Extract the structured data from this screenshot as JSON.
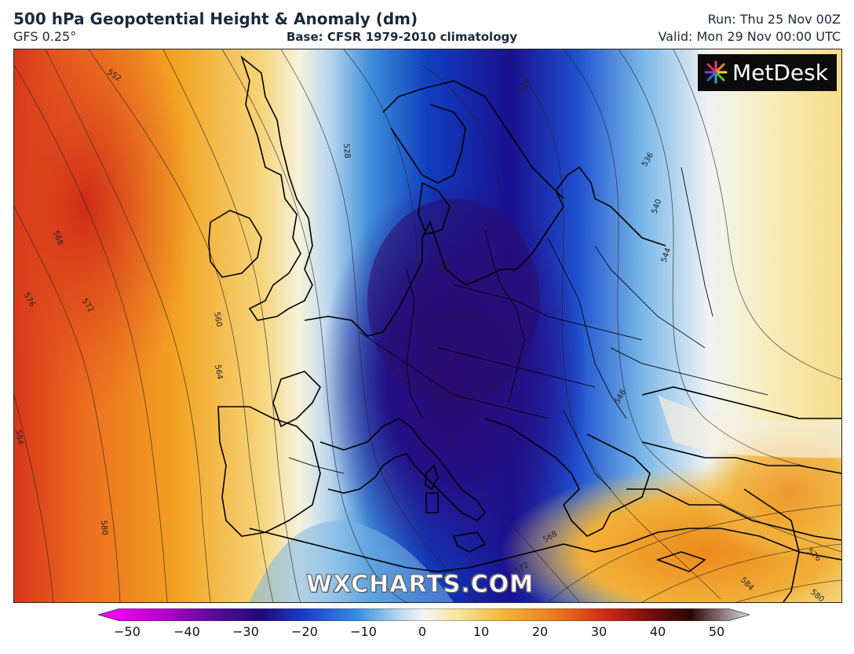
{
  "header": {
    "title": "500 hPa Geopotential Height & Anomaly (dm)",
    "model": "GFS 0.25°",
    "base": "Base: CFSR 1979-2010 climatology",
    "run": "Run: Thu 25 Nov 00Z",
    "valid": "Valid: Mon 29 Nov 00:00 UTC"
  },
  "logo": {
    "text": "MetDesk",
    "icon": "metdesk-starburst-icon"
  },
  "watermark": "WXCHARTS.COM",
  "contour_labels": [
    "552",
    "568",
    "576",
    "572",
    "560",
    "564",
    "584",
    "580",
    "528",
    "520",
    "536",
    "540",
    "544",
    "548",
    "528",
    "568",
    "572",
    "576",
    "584",
    "580"
  ],
  "colorbar": {
    "ticks": [
      "−50",
      "−40",
      "−30",
      "−20",
      "−10",
      "0",
      "10",
      "20",
      "30",
      "40",
      "50"
    ],
    "colors": [
      "#ff00ff",
      "#7a0aa0",
      "#20007a",
      "#1a3fd0",
      "#4aa8e8",
      "#f2f5fa",
      "#f5e28c",
      "#f0a020",
      "#d83018",
      "#6a0a0a",
      "#cccccc"
    ]
  }
}
